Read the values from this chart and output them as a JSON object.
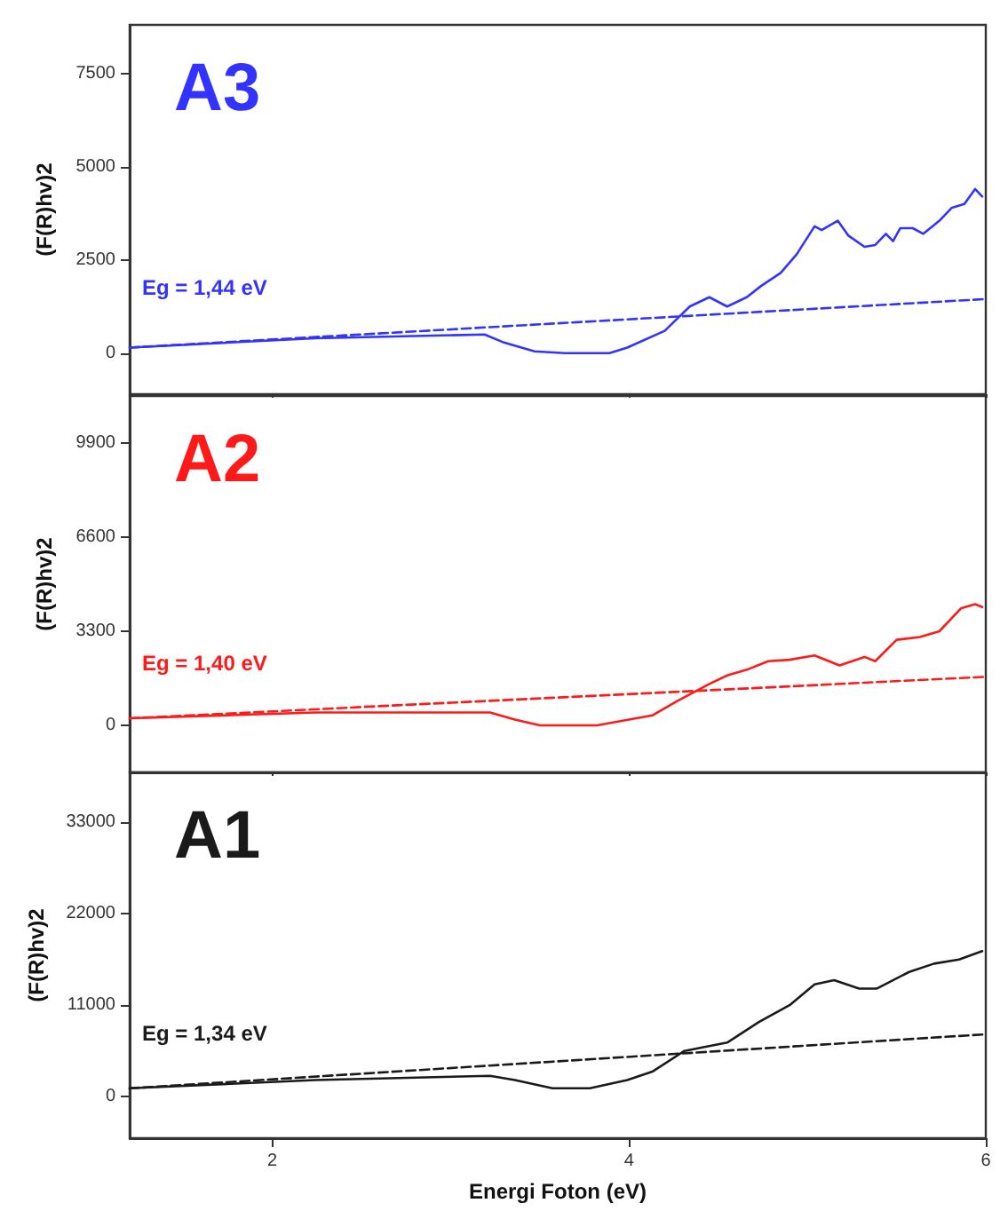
{
  "chart_data": [
    {
      "type": "line",
      "title": "A3",
      "ylabel": "(F(R)hv)2",
      "annotations": [
        "Eg = 1,44 eV"
      ],
      "xlim": [
        1.2,
        6.0
      ],
      "xticks": [
        2,
        4,
        6
      ],
      "ylim": [
        -1100,
        8800
      ],
      "yticks": [
        0,
        2500,
        5000,
        7500
      ],
      "tick_labels": "y",
      "marker": "none",
      "series": [
        {
          "color": "#3333ff",
          "line_style": "solid",
          "x": [
            1.2,
            2.24,
            3.19,
            3.29,
            3.47,
            3.64,
            3.89,
            3.99,
            4.2,
            4.34,
            4.45,
            4.55,
            4.66,
            4.74,
            4.85,
            4.94,
            5.04,
            5.08,
            5.17,
            5.23,
            5.32,
            5.38,
            5.44,
            5.48,
            5.52,
            5.59,
            5.65,
            5.74,
            5.81,
            5.88,
            5.94,
            5.98
          ],
          "values": [
            150,
            400,
            500,
            300,
            50,
            0,
            0,
            150,
            600,
            1250,
            1500,
            1250,
            1500,
            1800,
            2150,
            2650,
            3400,
            3300,
            3550,
            3150,
            2850,
            2900,
            3200,
            3000,
            3350,
            3350,
            3200,
            3550,
            3900,
            4000,
            4400,
            4200
          ]
        },
        {
          "color": "#3333ff",
          "line_style": "dashed",
          "x": [
            1.2,
            6.0
          ],
          "values": [
            150,
            1450
          ]
        }
      ]
    },
    {
      "type": "line",
      "title": "A2",
      "ylabel": "(F(R)hv)2",
      "annotations": [
        "Eg = 1,40 eV"
      ],
      "xlim": [
        1.2,
        6.0
      ],
      "xticks": [
        2,
        4,
        6
      ],
      "ylim": [
        -1650,
        11550
      ],
      "yticks": [
        0,
        3300,
        6600,
        9900
      ],
      "tick_labels": "y",
      "marker": "none",
      "series": [
        {
          "color": "#ff1a1a",
          "line_style": "solid",
          "x": [
            1.2,
            2.24,
            3.22,
            3.36,
            3.5,
            3.82,
            4.13,
            4.27,
            4.45,
            4.55,
            4.66,
            4.78,
            4.9,
            5.04,
            5.18,
            5.32,
            5.38,
            5.5,
            5.63,
            5.74,
            5.86,
            5.94,
            5.98
          ],
          "values": [
            250,
            450,
            450,
            200,
            0,
            0,
            350,
            850,
            1450,
            1750,
            1950,
            2250,
            2300,
            2450,
            2100,
            2400,
            2250,
            3000,
            3100,
            3300,
            4100,
            4250,
            4150
          ]
        },
        {
          "color": "#ff1a1a",
          "line_style": "dashed",
          "x": [
            1.2,
            6.0
          ],
          "values": [
            250,
            1700
          ]
        }
      ]
    },
    {
      "type": "line",
      "title": "A1",
      "xlabel": "Energi Foton (eV)",
      "ylabel": "(F(R)hv)2",
      "annotations": [
        "Eg = 1,34 eV"
      ],
      "xlim": [
        1.2,
        6.0
      ],
      "xticks": [
        2,
        4,
        6
      ],
      "ylim": [
        -5000,
        39000
      ],
      "yticks": [
        0,
        11000,
        22000,
        33000
      ],
      "marker": "none",
      "series": [
        {
          "color": "#1a1a1a",
          "line_style": "solid",
          "x": [
            1.2,
            2.24,
            3.22,
            3.36,
            3.57,
            3.78,
            3.99,
            4.13,
            4.31,
            4.55,
            4.73,
            4.9,
            5.04,
            5.15,
            5.29,
            5.39,
            5.57,
            5.71,
            5.85,
            5.98
          ],
          "values": [
            1000,
            2000,
            2500,
            2000,
            1000,
            1000,
            2000,
            3000,
            5500,
            6500,
            9000,
            11000,
            13500,
            14000,
            13000,
            13000,
            15000,
            16000,
            16500,
            17500
          ]
        },
        {
          "color": "#1a1a1a",
          "line_style": "dashed",
          "x": [
            1.2,
            6.0
          ],
          "values": [
            1000,
            7500
          ]
        }
      ]
    }
  ]
}
